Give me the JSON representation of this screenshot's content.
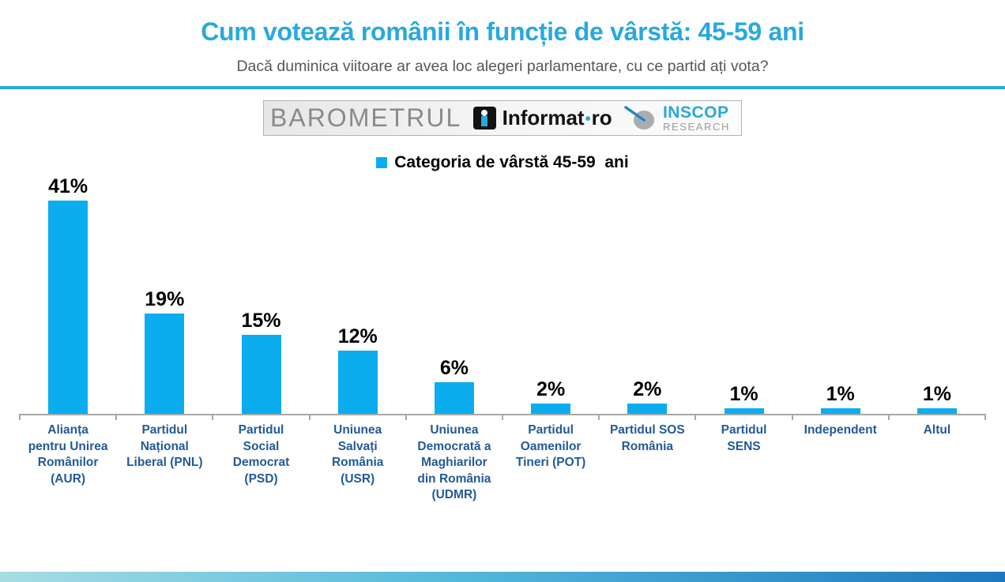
{
  "page": {
    "title": "Cum votează românii în funcție de vârstă: 45-59 ani",
    "subtitle": "Dacă duminica viitoare ar avea loc alegeri parlamentare, cu ce partid ați vota?"
  },
  "branding": {
    "barometrul": "BAROMETRUL",
    "informat_name": "Informat",
    "informat_sep": "•",
    "informat_tld": "ro",
    "inscop_name": "INSCOP",
    "inscop_sub": "RESEARCH"
  },
  "legend": {
    "label": "Categoria de vârstă 45-59  ani"
  },
  "colors": {
    "accent_blue": "#29a8e0",
    "bar_blue": "#0badef",
    "category_label_blue": "#235a97",
    "axis_gray": "#a8a8a8"
  },
  "chart_data": {
    "type": "bar",
    "title": "Cum votează românii în funcție de vârstă: 45-59 ani",
    "subtitle": "Dacă duminica viitoare ar avea loc alegeri parlamentare, cu ce partid ați vota?",
    "legend_label": "Categoria de vârstă 45-59 ani",
    "legend_position": "top",
    "grid": false,
    "ylim": [
      0,
      45
    ],
    "bar_color": "#0badef",
    "categories": [
      "Alianța pentru Unirea Românilor (AUR)",
      "Partidul Național Liberal (PNL)",
      "Partidul Social Democrat (PSD)",
      "Uniunea Salvați România (USR)",
      "Uniunea Democrată a Maghiarilor din România (UDMR)",
      "Partidul Oamenilor Tineri (POT)",
      "Partidul SOS România",
      "Partidul SENS",
      "Independent",
      "Altul"
    ],
    "xtick_labels": [
      "Alianța\npentru Unirea\nRomânilor\n(AUR)",
      "Partidul\nNațional\nLiberal (PNL)",
      "Partidul\nSocial\nDemocrat\n(PSD)",
      "Uniunea\nSalvați\nRomânia\n(USR)",
      "Uniunea\nDemocrată a\nMaghiarilor\ndin România\n(UDMR)",
      "Partidul\nOamenilor\nTineri (POT)",
      "Partidul SOS\nRomânia",
      "Partidul\nSENS",
      "Independent",
      "Altul"
    ],
    "values": [
      41,
      19,
      15,
      12,
      6,
      2,
      2,
      1,
      1,
      1
    ],
    "value_labels": [
      "41%",
      "19%",
      "15%",
      "12%",
      "6%",
      "2%",
      "2%",
      "1%",
      "1%",
      "1%"
    ]
  }
}
